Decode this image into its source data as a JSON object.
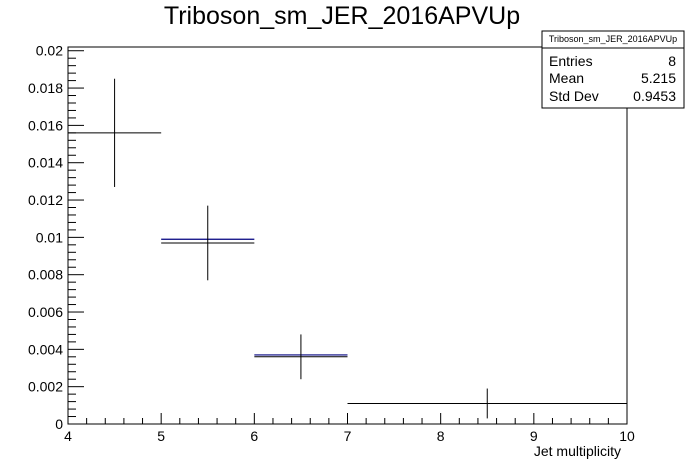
{
  "chart_data": {
    "type": "scatter",
    "title": "Triboson_sm_JER_2016APVUp",
    "xlabel": "Jet multiplicity",
    "ylabel": "",
    "xlim": [
      4,
      10
    ],
    "ylim": [
      0,
      0.0202
    ],
    "x_ticks": [
      4,
      5,
      6,
      7,
      8,
      9,
      10
    ],
    "x_tick_labels": [
      "4",
      "5",
      "6",
      "7",
      "8",
      "9",
      "10"
    ],
    "y_ticks": [
      0,
      0.002,
      0.004,
      0.006,
      0.008,
      0.01,
      0.012,
      0.014,
      0.016,
      0.018,
      0.02
    ],
    "y_tick_labels": [
      "0",
      "0.002",
      "0.004",
      "0.006",
      "0.008",
      "0.01",
      "0.012",
      "0.014",
      "0.016",
      "0.018",
      "0.02"
    ],
    "grid": false,
    "bins": [
      {
        "x_low": 4,
        "x_high": 5,
        "value": 0.0156,
        "err": 0.0029
      },
      {
        "x_low": 5,
        "x_high": 6,
        "value": 0.0097,
        "err": 0.002
      },
      {
        "x_low": 6,
        "x_high": 7,
        "value": 0.0036,
        "err": 0.0012
      },
      {
        "x_low": 7,
        "x_high": 10,
        "value": 0.0011,
        "err": 0.0008
      }
    ],
    "overlay": [
      {
        "x_low": 5,
        "x_high": 6,
        "value": 0.0099
      },
      {
        "x_low": 6,
        "x_high": 7,
        "value": 0.0037
      }
    ],
    "colors": {
      "data": "#000000",
      "overlay": "#00007f"
    }
  },
  "stats": {
    "name": "Triboson_sm_JER_2016APVUp",
    "entries_label": "Entries",
    "entries_value": "8",
    "mean_label": "Mean",
    "mean_value": "5.215",
    "std_label": "Std Dev",
    "std_value": "0.9453"
  }
}
